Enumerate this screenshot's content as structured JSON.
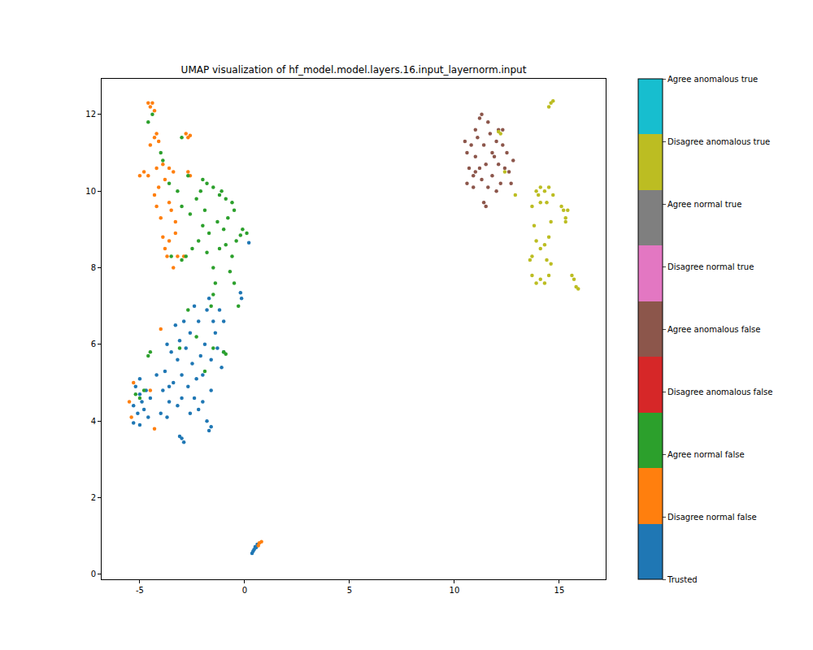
{
  "chart_data": {
    "type": "scatter",
    "title": "UMAP visualization of hf_model.model.layers.16.input_layernorm.input",
    "xlim": [
      -6.82,
      17.21
    ],
    "ylim": [
      -0.13,
      12.93
    ],
    "xticks": [
      -5,
      0,
      5,
      10,
      15
    ],
    "yticks": [
      0,
      2,
      4,
      6,
      8,
      10,
      12
    ],
    "grid": false,
    "colorbar": {
      "range": [
        0,
        8
      ],
      "ticks": [
        {
          "value": 0,
          "label": "Trusted"
        },
        {
          "value": 1,
          "label": "Disagree normal false"
        },
        {
          "value": 2,
          "label": "Agree normal false"
        },
        {
          "value": 3,
          "label": "Disagree anomalous false"
        },
        {
          "value": 4,
          "label": "Agree anomalous false"
        },
        {
          "value": 5,
          "label": "Disagree normal true"
        },
        {
          "value": 6,
          "label": "Agree normal true"
        },
        {
          "value": 7,
          "label": "Disagree anomalous true"
        },
        {
          "value": 8,
          "label": "Agree anomalous true"
        }
      ],
      "colors": [
        "#1f77b4",
        "#ff7f0e",
        "#2ca02c",
        "#d62728",
        "#8c564b",
        "#e377c2",
        "#7f7f7f",
        "#bcbd22",
        "#17becf"
      ]
    },
    "series": [
      {
        "name": "Trusted",
        "x": [
          -5.2,
          -5.0,
          -4.9,
          -5.3,
          -5.1,
          -4.8,
          -5.3,
          -5.0,
          -4.6,
          -4.7,
          -5.0,
          -4.5,
          -4.0,
          -3.7,
          -3.9,
          -3.6,
          -3.8,
          -3.4,
          -3.2,
          -3.0,
          -3.5,
          -3.1,
          -2.8,
          -2.6,
          -3.3,
          -2.9,
          -2.5,
          -2.3,
          -2.7,
          -2.4,
          -2.2,
          -2.6,
          -3.0,
          -3.2,
          -2.0,
          -2.1,
          -1.9,
          -1.6,
          -1.3,
          -1.5,
          -1.8,
          -1.7,
          -1.4,
          -1.1,
          -1.0,
          -1.6,
          -2.0,
          -1.8,
          -1.6,
          -1.7,
          -3.0,
          -2.9,
          -3.1,
          -3.6,
          -4.2,
          -3.7,
          -2.4,
          -2.2,
          -0.2,
          -0.15,
          0.2,
          0.35,
          0.45,
          0.5,
          0.6,
          0.4,
          0.55,
          -1.0,
          -1.2
        ],
        "y": [
          4.9,
          4.7,
          4.5,
          4.4,
          4.2,
          4.3,
          3.95,
          3.9,
          4.1,
          4.8,
          5.1,
          4.6,
          4.2,
          4.1,
          4.8,
          4.9,
          5.3,
          5.0,
          5.6,
          5.2,
          5.8,
          6.1,
          5.9,
          6.3,
          6.5,
          6.6,
          5.5,
          5.1,
          4.9,
          4.6,
          4.3,
          4.2,
          4.6,
          4.4,
          5.2,
          5.7,
          6.0,
          5.6,
          5.9,
          6.6,
          6.9,
          7.2,
          6.3,
          5.4,
          5.8,
          4.8,
          4.5,
          4.0,
          3.85,
          3.75,
          3.55,
          3.45,
          3.6,
          4.5,
          5.2,
          6.0,
          7.0,
          6.6,
          7.35,
          7.2,
          8.65,
          0.55,
          0.65,
          0.72,
          0.78,
          0.6,
          0.7,
          6.6,
          6.9
        ]
      },
      {
        "name": "Disagree normal false",
        "x": [
          -4.6,
          -4.5,
          -4.3,
          -4.2,
          -4.3,
          -4.1,
          -4.5,
          -2.8,
          -2.7,
          -2.6,
          -5.0,
          -4.8,
          -4.6,
          -4.2,
          -3.9,
          -3.6,
          -3.4,
          -3.8,
          -4.1,
          -4.3,
          -4.2,
          -4.0,
          -3.6,
          -3.5,
          -3.3,
          -2.7,
          -2.6,
          -3.9,
          -3.8,
          -3.7,
          -3.4,
          -3.2,
          -2.9,
          -3.6,
          -4.0,
          -5.5,
          -5.3,
          -5.4,
          -4.3,
          -4.5,
          0.7,
          0.8,
          0.65,
          -4.4,
          -3.3
        ],
        "y": [
          12.3,
          12.2,
          12.1,
          11.5,
          11.4,
          11.3,
          11.2,
          11.5,
          11.4,
          11.45,
          10.4,
          10.5,
          10.4,
          10.6,
          10.7,
          10.6,
          10.5,
          10.3,
          10.1,
          9.9,
          9.6,
          9.3,
          9.7,
          9.5,
          9.2,
          10.5,
          10.4,
          8.8,
          8.5,
          8.3,
          8.0,
          8.3,
          8.3,
          8.7,
          6.4,
          4.5,
          5.0,
          4.1,
          3.8,
          4.8,
          0.82,
          0.85,
          0.75,
          12.3,
          8.9
        ]
      },
      {
        "name": "Agree normal false",
        "x": [
          -4.6,
          -4.4,
          -3.9,
          -3.6,
          -3.2,
          -3.0,
          -2.6,
          -2.3,
          -2.0,
          -1.8,
          -1.5,
          -1.2,
          -0.9,
          -0.6,
          -0.5,
          -0.8,
          -1.0,
          -1.3,
          -1.7,
          -2.0,
          -2.2,
          -2.5,
          -2.8,
          -3.0,
          -1.8,
          -1.5,
          -1.4,
          -1.5,
          -1.6,
          -1.2,
          -0.9,
          -0.6,
          -0.4,
          -0.1,
          0.1,
          -0.2,
          -0.7,
          -0.5,
          -0.3,
          -2.7,
          -2.3,
          -1.9,
          -1.5,
          -3.1,
          -4.5,
          -4.6,
          -4.8,
          -5.0,
          -5.2,
          -1.0,
          -0.9,
          -2.1,
          -1.1,
          -3.0,
          -4.0,
          -3.5,
          -1.9,
          -2.7
        ],
        "y": [
          11.8,
          12.0,
          10.8,
          10.2,
          10.0,
          9.6,
          9.4,
          9.8,
          10.3,
          10.2,
          10.1,
          9.9,
          9.8,
          9.7,
          9.5,
          9.3,
          9.0,
          9.2,
          8.9,
          9.1,
          8.7,
          8.5,
          8.3,
          8.2,
          8.4,
          8.0,
          7.6,
          7.3,
          7.0,
          8.5,
          8.6,
          8.3,
          8.7,
          9.0,
          8.9,
          8.85,
          7.9,
          7.6,
          7.0,
          6.9,
          6.2,
          5.3,
          5.9,
          5.9,
          5.8,
          5.7,
          4.8,
          4.6,
          4.7,
          5.8,
          5.75,
          10.0,
          10.0,
          11.4,
          11.0,
          8.3,
          9.5,
          10.4
        ]
      },
      {
        "name": "Agree anomalous false",
        "x": [
          10.5,
          10.6,
          10.7,
          10.6,
          10.9,
          11.0,
          11.1,
          11.2,
          11.3,
          11.0,
          11.4,
          11.5,
          11.3,
          11.6,
          11.4,
          11.5,
          11.8,
          11.9,
          12.0,
          12.1,
          11.7,
          12.3,
          12.5,
          12.4,
          12.2,
          12.6,
          12.8,
          12.0,
          11.8,
          11.2,
          10.8,
          10.9,
          12.3,
          11.6,
          12.1,
          11.0,
          12.7
        ],
        "y": [
          11.3,
          11.0,
          10.6,
          10.2,
          10.4,
          10.9,
          11.4,
          11.9,
          12.0,
          11.6,
          11.2,
          10.7,
          10.3,
          10.1,
          9.7,
          9.6,
          10.4,
          10.9,
          11.3,
          11.6,
          11.5,
          11.2,
          11.0,
          10.6,
          10.2,
          10.5,
          10.8,
          10.0,
          11.0,
          10.6,
          11.2,
          10.1,
          11.6,
          11.8,
          10.7,
          10.5,
          10.2
        ]
      },
      {
        "name": "Disagree anomalous true",
        "x": [
          14.5,
          14.6,
          14.7,
          12.1,
          12.2,
          12.9,
          12.4,
          13.7,
          13.8,
          13.9,
          13.9,
          14.1,
          14.3,
          14.5,
          14.4,
          14.6,
          14.5,
          14.3,
          14.1,
          14.6,
          14.5,
          14.3,
          14.1,
          13.9,
          13.7,
          13.6,
          13.7,
          14.0,
          14.7,
          15.2,
          15.3,
          15.4,
          15.1,
          15.3,
          15.6,
          15.7,
          15.8,
          15.9,
          14.1,
          14.4
        ],
        "y": [
          12.2,
          12.3,
          12.35,
          11.55,
          11.5,
          9.9,
          10.5,
          9.6,
          9.1,
          8.7,
          10.0,
          10.1,
          10.0,
          10.1,
          9.7,
          9.2,
          8.8,
          8.6,
          8.5,
          8.1,
          7.8,
          7.6,
          7.7,
          7.6,
          7.8,
          8.2,
          8.3,
          9.9,
          9.9,
          9.5,
          9.3,
          9.5,
          9.6,
          9.2,
          7.8,
          7.7,
          7.5,
          7.45,
          9.7,
          8.2
        ]
      }
    ]
  }
}
